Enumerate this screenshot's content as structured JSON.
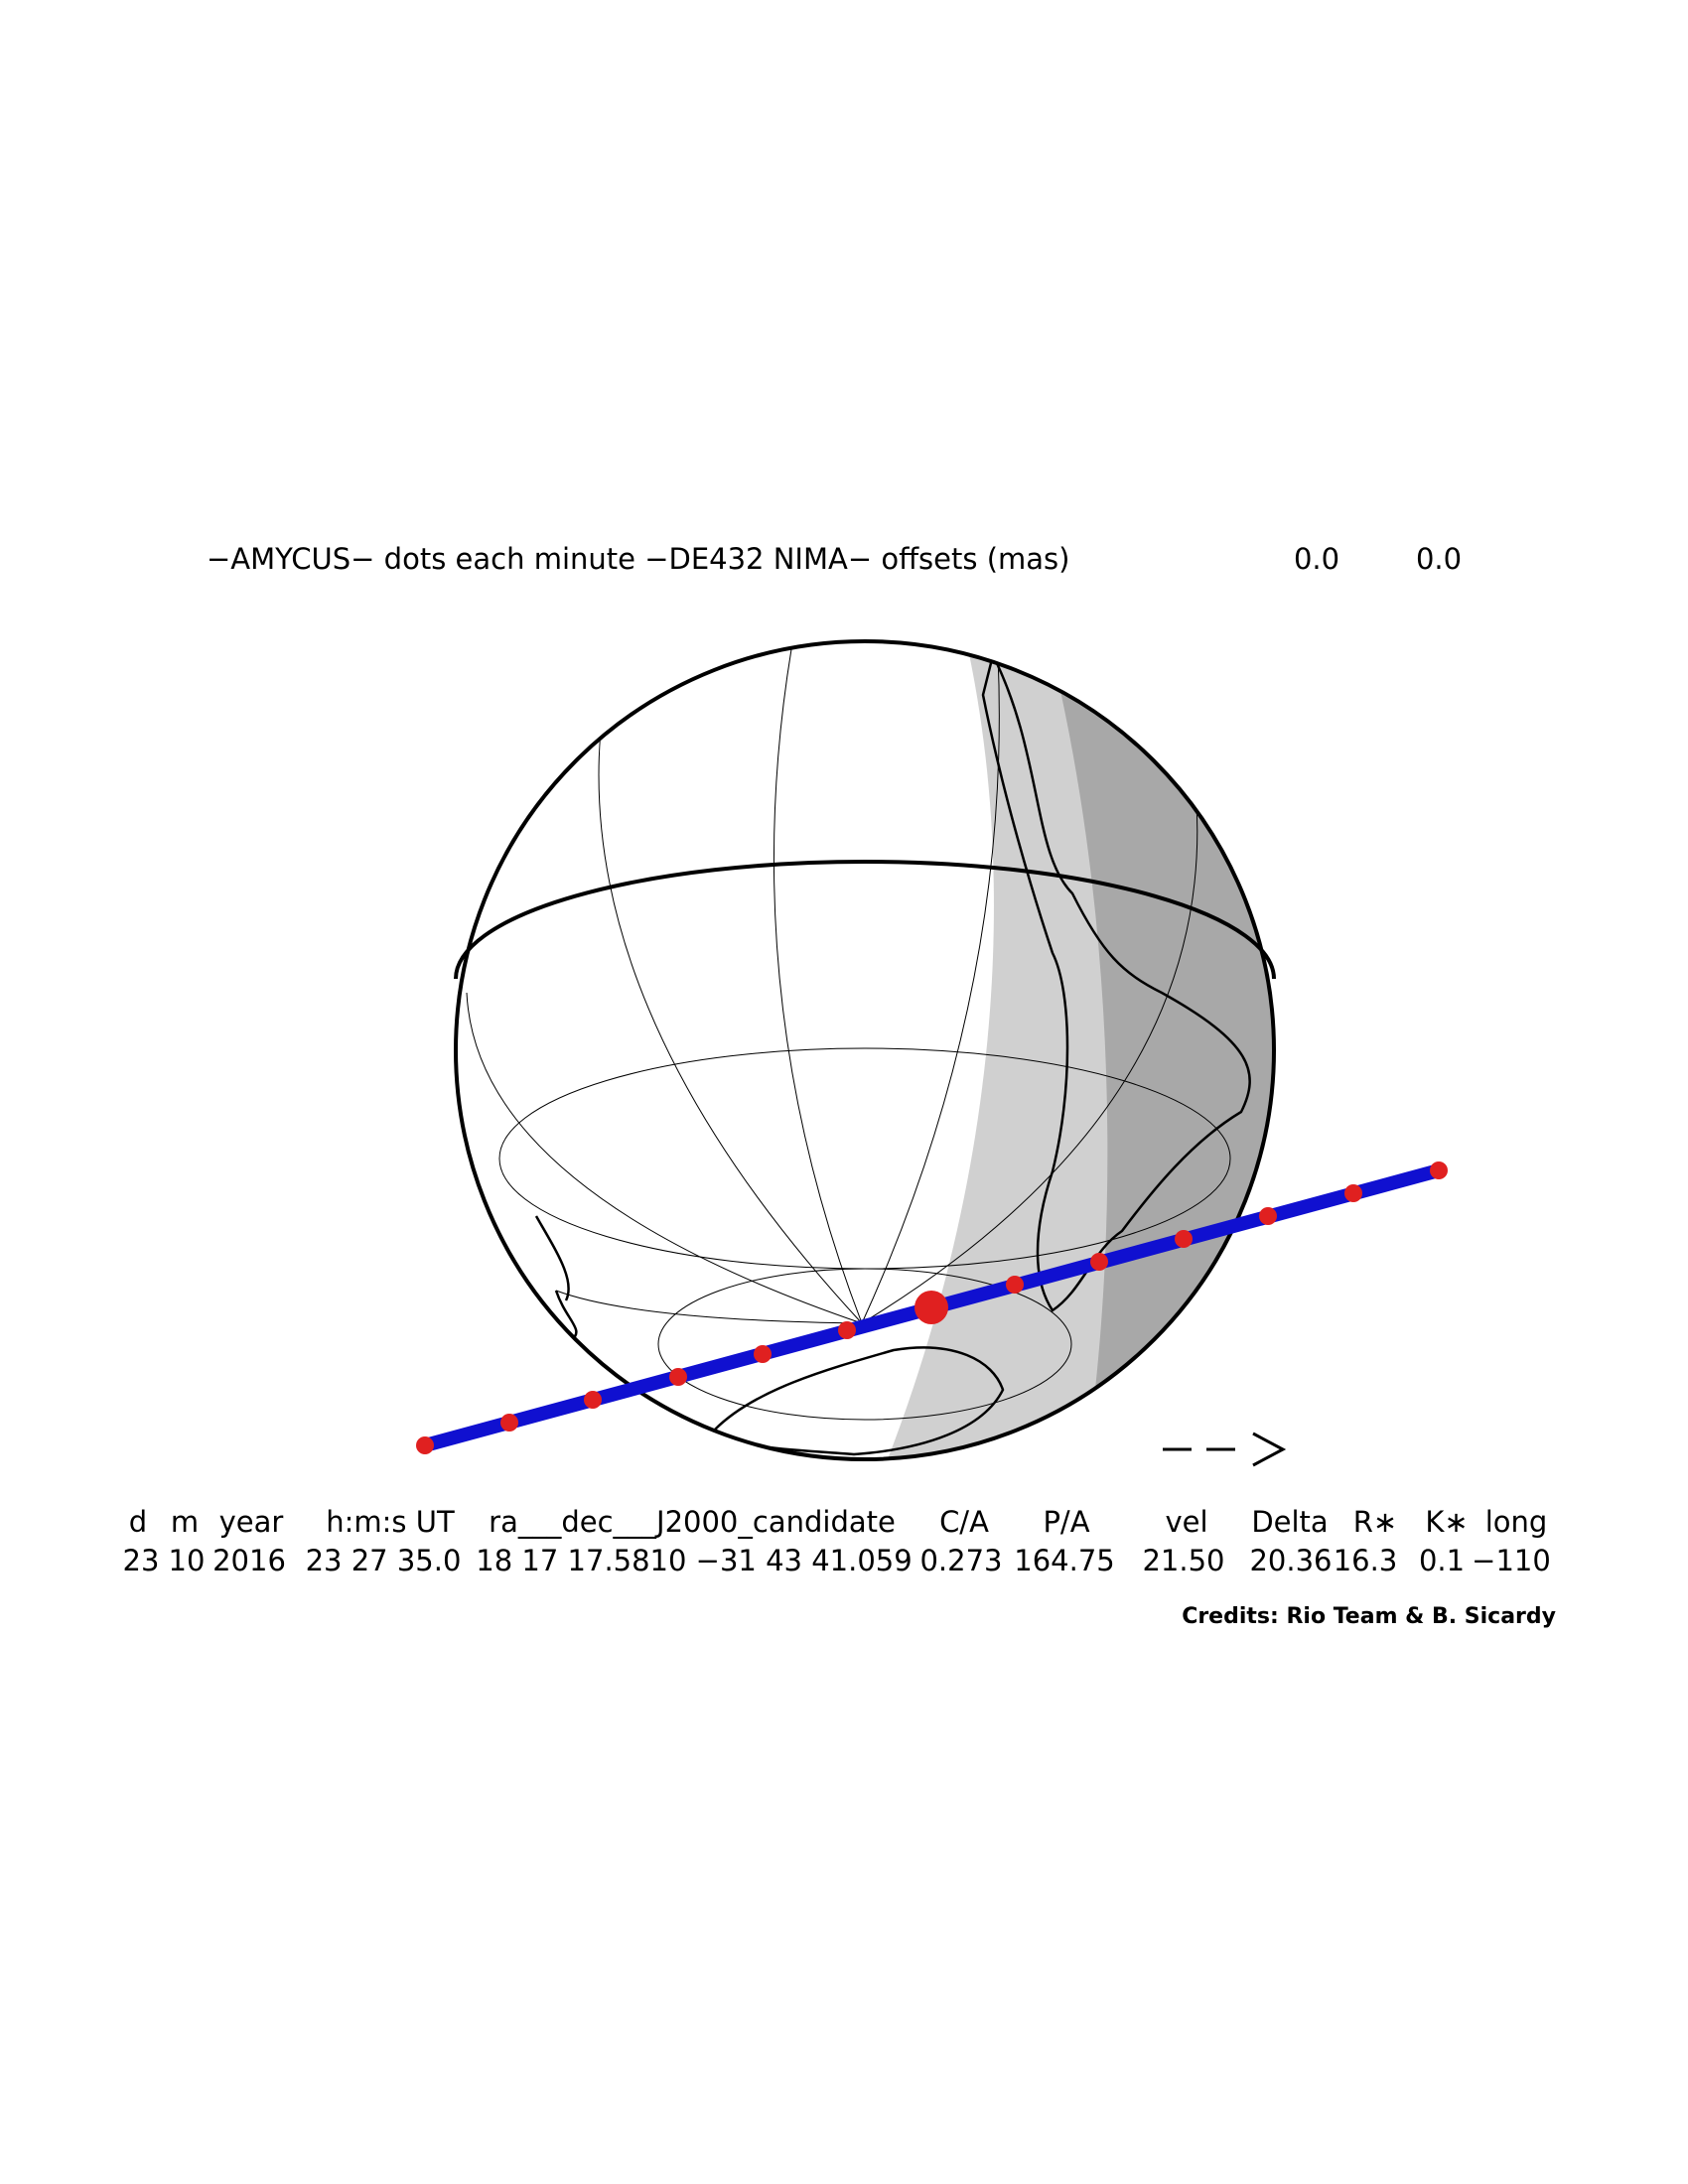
{
  "header": {
    "title": "−AMYCUS− dots each minute −DE432 NIMA− offsets (mas)",
    "offsets": [
      "0.0",
      "0.0"
    ]
  },
  "table": {
    "columns": [
      "d",
      "m",
      "year",
      "h:m:s UT",
      "ra___dec___J2000_candidate",
      "C/A",
      "P/A",
      "vel",
      "Delta",
      "R∗",
      "K∗",
      "long"
    ],
    "values": [
      "23",
      "10",
      "2016",
      "23 27 35.0",
      "18 17 17.5810 −31 43 41.059",
      "0.273",
      "164.75",
      "21.50",
      "20.36",
      "16.3",
      "0.1",
      "−110"
    ]
  },
  "footer": {
    "credits": "Credits: Rio Team & B. Sicardy"
  }
}
